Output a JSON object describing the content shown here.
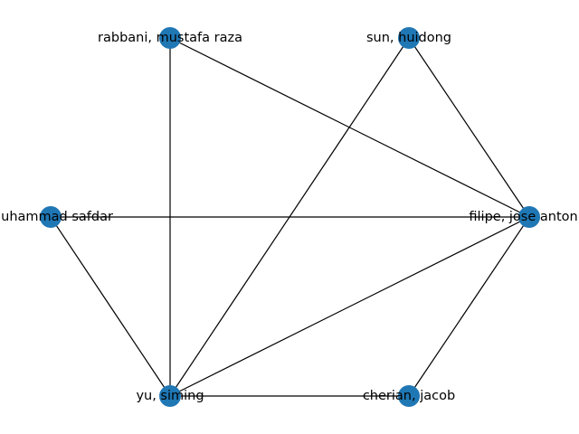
{
  "graph": {
    "node_color": "#1f77b4",
    "edge_color": "#000000",
    "label_color": "#000000",
    "nodes": [
      {
        "id": "rabbani",
        "label": "rabbani, mustafa raza"
      },
      {
        "id": "sun",
        "label": "sun, huidong"
      },
      {
        "id": "muhammad",
        "label": "muhammad safdar"
      },
      {
        "id": "filipe",
        "label": "filipe, jose antonio"
      },
      {
        "id": "yu",
        "label": "yu, siming"
      },
      {
        "id": "cherian",
        "label": "cherian, jacob"
      }
    ],
    "edges": [
      {
        "source": "rabbani",
        "target": "yu"
      },
      {
        "source": "rabbani",
        "target": "filipe"
      },
      {
        "source": "sun",
        "target": "filipe"
      },
      {
        "source": "sun",
        "target": "yu"
      },
      {
        "source": "muhammad",
        "target": "filipe"
      },
      {
        "source": "muhammad",
        "target": "yu"
      },
      {
        "source": "filipe",
        "target": "yu"
      },
      {
        "source": "filipe",
        "target": "cherian"
      },
      {
        "source": "yu",
        "target": "cherian"
      }
    ]
  }
}
